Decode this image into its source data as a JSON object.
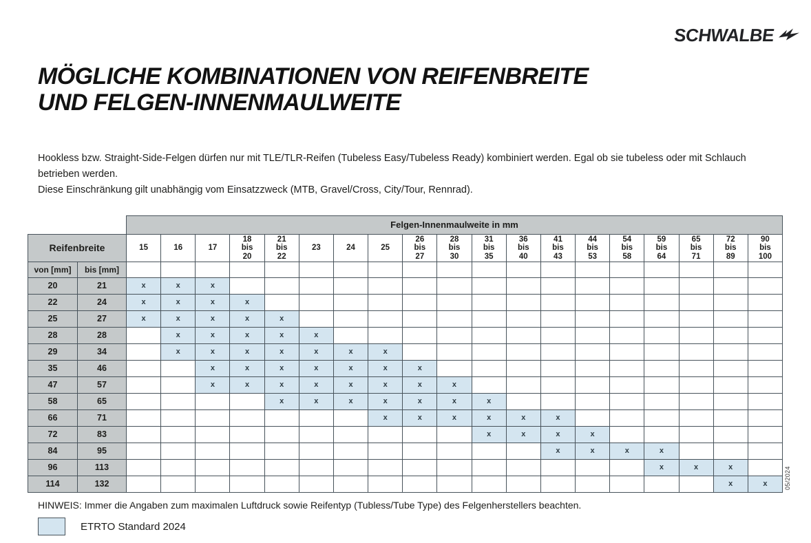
{
  "brand": {
    "logo_text": "SCHWALBE"
  },
  "title": {
    "line1": "MÖGLICHE KOMBINATIONEN VON REIFENBREITE",
    "line2": "UND FELGEN-INNENMAULWEITE"
  },
  "intro": {
    "line1": "Hookless bzw. Straight-Side-Felgen dürfen nur mit TLE/TLR-Reifen (Tubeless Easy/Tubeless Ready) kombiniert werden. Egal ob sie tubeless oder mit Schlauch betrieben werden.",
    "line2": "Diese Einschränkung gilt unabhängig vom Einsatzzweck (MTB, Gravel/Cross, City/Tour, Rennrad)."
  },
  "table": {
    "group_header": "Felgen-Innenmaulweite in mm",
    "row_header_title": "Reifenbreite",
    "von_label": "von [mm]",
    "bis_label": "bis [mm]",
    "mark": "x",
    "columns": [
      [
        "15"
      ],
      [
        "16"
      ],
      [
        "17"
      ],
      [
        "18",
        "bis",
        "20"
      ],
      [
        "21",
        "bis",
        "22"
      ],
      [
        "23"
      ],
      [
        "24"
      ],
      [
        "25"
      ],
      [
        "26",
        "bis",
        "27"
      ],
      [
        "28",
        "bis",
        "30"
      ],
      [
        "31",
        "bis",
        "35"
      ],
      [
        "36",
        "bis",
        "40"
      ],
      [
        "41",
        "bis",
        "43"
      ],
      [
        "44",
        "bis",
        "53"
      ],
      [
        "54",
        "bis",
        "58"
      ],
      [
        "59",
        "bis",
        "64"
      ],
      [
        "65",
        "bis",
        "71"
      ],
      [
        "72",
        "bis",
        "89"
      ],
      [
        "90",
        "bis",
        "100"
      ]
    ],
    "rows": [
      {
        "von": "20",
        "bis": "21",
        "marks": [
          1,
          1,
          1,
          0,
          0,
          0,
          0,
          0,
          0,
          0,
          0,
          0,
          0,
          0,
          0,
          0,
          0,
          0,
          0
        ]
      },
      {
        "von": "22",
        "bis": "24",
        "marks": [
          1,
          1,
          1,
          1,
          0,
          0,
          0,
          0,
          0,
          0,
          0,
          0,
          0,
          0,
          0,
          0,
          0,
          0,
          0
        ]
      },
      {
        "von": "25",
        "bis": "27",
        "marks": [
          1,
          1,
          1,
          1,
          1,
          0,
          0,
          0,
          0,
          0,
          0,
          0,
          0,
          0,
          0,
          0,
          0,
          0,
          0
        ]
      },
      {
        "von": "28",
        "bis": "28",
        "marks": [
          0,
          1,
          1,
          1,
          1,
          1,
          0,
          0,
          0,
          0,
          0,
          0,
          0,
          0,
          0,
          0,
          0,
          0,
          0
        ]
      },
      {
        "von": "29",
        "bis": "34",
        "marks": [
          0,
          1,
          1,
          1,
          1,
          1,
          1,
          1,
          0,
          0,
          0,
          0,
          0,
          0,
          0,
          0,
          0,
          0,
          0
        ]
      },
      {
        "von": "35",
        "bis": "46",
        "marks": [
          0,
          0,
          1,
          1,
          1,
          1,
          1,
          1,
          1,
          0,
          0,
          0,
          0,
          0,
          0,
          0,
          0,
          0,
          0
        ]
      },
      {
        "von": "47",
        "bis": "57",
        "marks": [
          0,
          0,
          1,
          1,
          1,
          1,
          1,
          1,
          1,
          1,
          0,
          0,
          0,
          0,
          0,
          0,
          0,
          0,
          0
        ]
      },
      {
        "von": "58",
        "bis": "65",
        "marks": [
          0,
          0,
          0,
          0,
          1,
          1,
          1,
          1,
          1,
          1,
          1,
          0,
          0,
          0,
          0,
          0,
          0,
          0,
          0
        ]
      },
      {
        "von": "66",
        "bis": "71",
        "marks": [
          0,
          0,
          0,
          0,
          0,
          0,
          0,
          1,
          1,
          1,
          1,
          1,
          1,
          0,
          0,
          0,
          0,
          0,
          0
        ]
      },
      {
        "von": "72",
        "bis": "83",
        "marks": [
          0,
          0,
          0,
          0,
          0,
          0,
          0,
          0,
          0,
          0,
          1,
          1,
          1,
          1,
          0,
          0,
          0,
          0,
          0
        ]
      },
      {
        "von": "84",
        "bis": "95",
        "marks": [
          0,
          0,
          0,
          0,
          0,
          0,
          0,
          0,
          0,
          0,
          0,
          0,
          1,
          1,
          1,
          1,
          0,
          0,
          0
        ]
      },
      {
        "von": "96",
        "bis": "113",
        "marks": [
          0,
          0,
          0,
          0,
          0,
          0,
          0,
          0,
          0,
          0,
          0,
          0,
          0,
          0,
          0,
          1,
          1,
          1,
          0
        ]
      },
      {
        "von": "114",
        "bis": "132",
        "marks": [
          0,
          0,
          0,
          0,
          0,
          0,
          0,
          0,
          0,
          0,
          0,
          0,
          0,
          0,
          0,
          0,
          0,
          1,
          1
        ]
      }
    ]
  },
  "side_note": "05/2024",
  "footer": {
    "hinweis": "HINWEIS: Immer die Angaben zum maximalen Luftdruck sowie Reifentyp (Tubless/Tube Type) des Felgenherstellers beachten.",
    "legend_label": "ETRTO Standard 2024"
  },
  "colors": {
    "header_gray": "#c5c9ca",
    "cell_blue": "#d4e5f0",
    "grid_line": "#47525a",
    "text": "#1d1d1b"
  }
}
